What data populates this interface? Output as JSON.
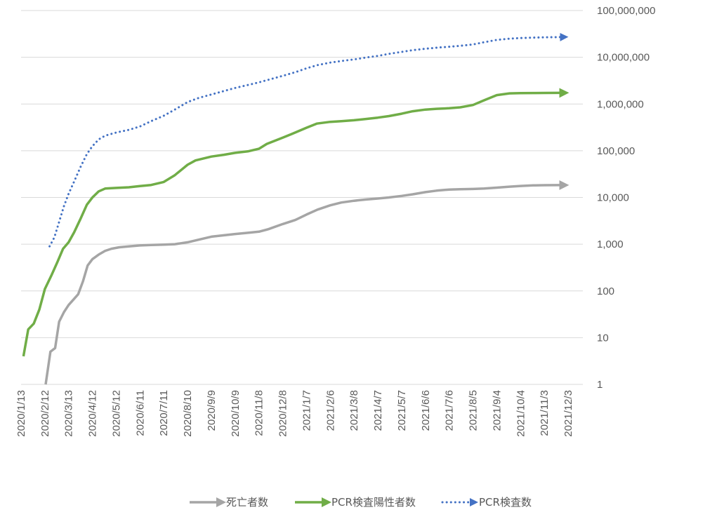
{
  "chart_data": {
    "type": "line",
    "title": "",
    "xlabel": "",
    "ylabel": "",
    "y_scale": "log",
    "y_axis_position": "right",
    "ylim": [
      1,
      100000000
    ],
    "y_ticks": [
      1,
      10,
      100,
      1000,
      10000,
      100000,
      1000000,
      10000000,
      100000000
    ],
    "y_tick_labels": [
      "1",
      "10",
      "100",
      "1,000",
      "10,000",
      "100,000",
      "1,000,000",
      "10,000,000",
      "100,000,000"
    ],
    "xlim": [
      "2020-01-13",
      "2021-12-03"
    ],
    "x_tick_dates": [
      "2020-01-13",
      "2020-02-12",
      "2020-03-13",
      "2020-04-12",
      "2020-05-12",
      "2020-06-11",
      "2020-07-11",
      "2020-08-10",
      "2020-09-09",
      "2020-10-09",
      "2020-11-08",
      "2020-12-08",
      "2021-01-07",
      "2021-02-06",
      "2021-03-08",
      "2021-04-07",
      "2021-05-07",
      "2021-06-06",
      "2021-07-06",
      "2021-08-05",
      "2021-09-04",
      "2021-10-04",
      "2021-11-03",
      "2021-12-03"
    ],
    "x_tick_labels": [
      "2020/1/13",
      "2020/2/12",
      "2020/3/13",
      "2020/4/12",
      "2020/5/12",
      "2020/6/11",
      "2020/7/11",
      "2020/8/10",
      "2020/9/9",
      "2020/10/9",
      "2020/11/8",
      "2020/12/8",
      "2021/1/7",
      "2021/2/6",
      "2021/3/8",
      "2021/4/7",
      "2021/5/7",
      "2021/6/6",
      "2021/7/6",
      "2021/8/5",
      "2021/9/4",
      "2021/10/4",
      "2021/11/3",
      "2021/12/3"
    ],
    "grid": true,
    "legend_position": "bottom",
    "series": [
      {
        "name": "死亡者数",
        "color": "#a5a5a5",
        "style": "solid-arrow",
        "points": [
          [
            "2020-02-13",
            1
          ],
          [
            "2020-02-19",
            5
          ],
          [
            "2020-02-25",
            6
          ],
          [
            "2020-03-01",
            22
          ],
          [
            "2020-03-07",
            35
          ],
          [
            "2020-03-13",
            50
          ],
          [
            "2020-03-19",
            65
          ],
          [
            "2020-03-25",
            85
          ],
          [
            "2020-03-31",
            160
          ],
          [
            "2020-04-06",
            350
          ],
          [
            "2020-04-12",
            480
          ],
          [
            "2020-04-20",
            600
          ],
          [
            "2020-04-28",
            720
          ],
          [
            "2020-05-06",
            800
          ],
          [
            "2020-05-16",
            860
          ],
          [
            "2020-05-28",
            900
          ],
          [
            "2020-06-11",
            940
          ],
          [
            "2020-06-25",
            960
          ],
          [
            "2020-07-11",
            980
          ],
          [
            "2020-07-25",
            1000
          ],
          [
            "2020-08-10",
            1100
          ],
          [
            "2020-08-24",
            1250
          ],
          [
            "2020-09-09",
            1450
          ],
          [
            "2020-09-25",
            1550
          ],
          [
            "2020-10-09",
            1650
          ],
          [
            "2020-10-25",
            1750
          ],
          [
            "2020-11-08",
            1850
          ],
          [
            "2020-11-20",
            2100
          ],
          [
            "2020-12-08",
            2700
          ],
          [
            "2020-12-24",
            3300
          ],
          [
            "2021-01-07",
            4300
          ],
          [
            "2021-01-21",
            5500
          ],
          [
            "2021-02-06",
            6800
          ],
          [
            "2021-02-20",
            7800
          ],
          [
            "2021-03-08",
            8500
          ],
          [
            "2021-03-22",
            9000
          ],
          [
            "2021-04-07",
            9500
          ],
          [
            "2021-04-21",
            10000
          ],
          [
            "2021-05-07",
            10800
          ],
          [
            "2021-05-21",
            11700
          ],
          [
            "2021-06-06",
            13000
          ],
          [
            "2021-06-20",
            14000
          ],
          [
            "2021-07-06",
            14800
          ],
          [
            "2021-07-20",
            15000
          ],
          [
            "2021-08-05",
            15200
          ],
          [
            "2021-08-19",
            15500
          ],
          [
            "2021-09-04",
            16200
          ],
          [
            "2021-09-20",
            17000
          ],
          [
            "2021-10-04",
            17600
          ],
          [
            "2021-10-20",
            18100
          ],
          [
            "2021-11-03",
            18300
          ],
          [
            "2021-11-20",
            18400
          ],
          [
            "2021-11-28",
            18400
          ]
        ]
      },
      {
        "name": "PCR検査陽性者数",
        "color": "#70ad47",
        "style": "solid-arrow",
        "points": [
          [
            "2020-01-16",
            4
          ],
          [
            "2020-01-22",
            15
          ],
          [
            "2020-01-29",
            20
          ],
          [
            "2020-02-05",
            40
          ],
          [
            "2020-02-12",
            110
          ],
          [
            "2020-02-20",
            210
          ],
          [
            "2020-02-28",
            420
          ],
          [
            "2020-03-06",
            800
          ],
          [
            "2020-03-13",
            1100
          ],
          [
            "2020-03-20",
            1800
          ],
          [
            "2020-03-28",
            3500
          ],
          [
            "2020-04-05",
            7000
          ],
          [
            "2020-04-12",
            10000
          ],
          [
            "2020-04-20",
            13500
          ],
          [
            "2020-04-28",
            15500
          ],
          [
            "2020-05-12",
            16000
          ],
          [
            "2020-05-28",
            16500
          ],
          [
            "2020-06-11",
            17500
          ],
          [
            "2020-06-25",
            18500
          ],
          [
            "2020-07-11",
            21500
          ],
          [
            "2020-07-25",
            30000
          ],
          [
            "2020-08-10",
            50000
          ],
          [
            "2020-08-20",
            62000
          ],
          [
            "2020-09-09",
            75000
          ],
          [
            "2020-09-25",
            82000
          ],
          [
            "2020-10-09",
            90000
          ],
          [
            "2020-10-25",
            97000
          ],
          [
            "2020-11-08",
            110000
          ],
          [
            "2020-11-18",
            140000
          ],
          [
            "2020-12-08",
            190000
          ],
          [
            "2020-12-20",
            230000
          ],
          [
            "2021-01-07",
            310000
          ],
          [
            "2021-01-20",
            380000
          ],
          [
            "2021-02-06",
            415000
          ],
          [
            "2021-02-20",
            430000
          ],
          [
            "2021-03-08",
            450000
          ],
          [
            "2021-03-22",
            475000
          ],
          [
            "2021-04-07",
            510000
          ],
          [
            "2021-04-21",
            550000
          ],
          [
            "2021-05-07",
            620000
          ],
          [
            "2021-05-21",
            700000
          ],
          [
            "2021-06-06",
            760000
          ],
          [
            "2021-06-20",
            790000
          ],
          [
            "2021-07-06",
            810000
          ],
          [
            "2021-07-20",
            850000
          ],
          [
            "2021-08-05",
            950000
          ],
          [
            "2021-08-19",
            1200000
          ],
          [
            "2021-09-04",
            1550000
          ],
          [
            "2021-09-20",
            1690000
          ],
          [
            "2021-10-04",
            1710000
          ],
          [
            "2021-10-20",
            1720000
          ],
          [
            "2021-11-03",
            1725000
          ],
          [
            "2021-11-20",
            1730000
          ],
          [
            "2021-11-28",
            1735000
          ]
        ]
      },
      {
        "name": "PCR検査数",
        "color": "#4472c4",
        "style": "dotted-arrow",
        "points": [
          [
            "2020-02-18",
            900
          ],
          [
            "2020-02-24",
            1400
          ],
          [
            "2020-03-01",
            3000
          ],
          [
            "2020-03-07",
            6500
          ],
          [
            "2020-03-13",
            12000
          ],
          [
            "2020-03-20",
            22000
          ],
          [
            "2020-03-28",
            45000
          ],
          [
            "2020-04-05",
            85000
          ],
          [
            "2020-04-12",
            125000
          ],
          [
            "2020-04-20",
            175000
          ],
          [
            "2020-04-28",
            210000
          ],
          [
            "2020-05-12",
            245000
          ],
          [
            "2020-05-28",
            280000
          ],
          [
            "2020-06-11",
            330000
          ],
          [
            "2020-06-25",
            430000
          ],
          [
            "2020-07-11",
            560000
          ],
          [
            "2020-07-25",
            760000
          ],
          [
            "2020-08-10",
            1100000
          ],
          [
            "2020-08-24",
            1350000
          ],
          [
            "2020-09-09",
            1600000
          ],
          [
            "2020-09-25",
            1900000
          ],
          [
            "2020-10-09",
            2200000
          ],
          [
            "2020-10-25",
            2550000
          ],
          [
            "2020-11-08",
            2900000
          ],
          [
            "2020-11-20",
            3300000
          ],
          [
            "2020-12-08",
            4000000
          ],
          [
            "2020-12-24",
            4800000
          ],
          [
            "2021-01-07",
            5800000
          ],
          [
            "2021-01-21",
            6800000
          ],
          [
            "2021-02-06",
            7700000
          ],
          [
            "2021-02-20",
            8300000
          ],
          [
            "2021-03-08",
            9000000
          ],
          [
            "2021-03-22",
            9800000
          ],
          [
            "2021-04-07",
            10700000
          ],
          [
            "2021-04-21",
            11800000
          ],
          [
            "2021-05-07",
            13000000
          ],
          [
            "2021-05-21",
            14200000
          ],
          [
            "2021-06-06",
            15200000
          ],
          [
            "2021-06-20",
            16000000
          ],
          [
            "2021-07-06",
            16800000
          ],
          [
            "2021-07-20",
            17600000
          ],
          [
            "2021-08-05",
            18800000
          ],
          [
            "2021-08-19",
            21000000
          ],
          [
            "2021-09-04",
            23500000
          ],
          [
            "2021-09-20",
            25000000
          ],
          [
            "2021-10-04",
            25800000
          ],
          [
            "2021-10-20",
            26300000
          ],
          [
            "2021-11-03",
            26700000
          ],
          [
            "2021-11-20",
            27000000
          ],
          [
            "2021-11-28",
            27200000
          ]
        ]
      }
    ]
  }
}
